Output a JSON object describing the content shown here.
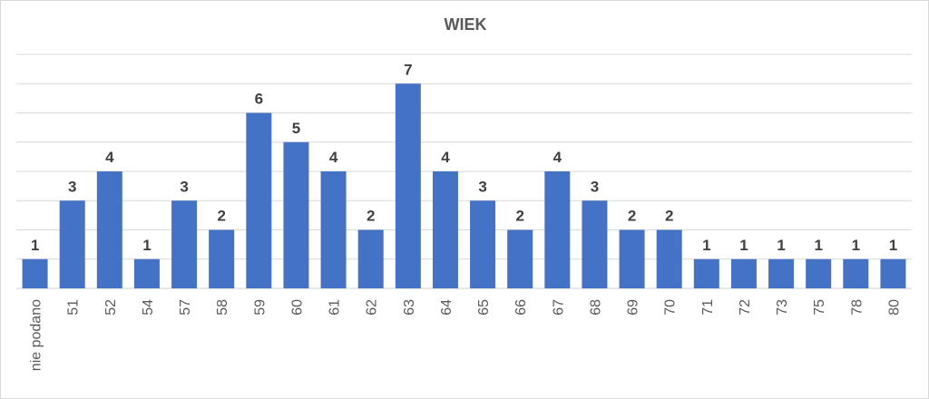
{
  "chart_data": {
    "type": "bar",
    "title": "WIEK",
    "xlabel": "",
    "ylabel": "",
    "categories": [
      "nie podano",
      "51",
      "52",
      "54",
      "57",
      "58",
      "59",
      "60",
      "61",
      "62",
      "63",
      "64",
      "65",
      "66",
      "67",
      "68",
      "69",
      "70",
      "71",
      "72",
      "73",
      "75",
      "78",
      "80"
    ],
    "values": [
      1,
      3,
      4,
      1,
      3,
      2,
      6,
      5,
      4,
      2,
      7,
      4,
      3,
      2,
      4,
      3,
      2,
      2,
      1,
      1,
      1,
      1,
      1,
      1
    ],
    "ylim": [
      0,
      8
    ],
    "grid": true,
    "legend": "none",
    "colors": {
      "bar": "#4472c4",
      "grid": "#d9d9d9",
      "text": "#595959",
      "label": "#404040"
    }
  }
}
